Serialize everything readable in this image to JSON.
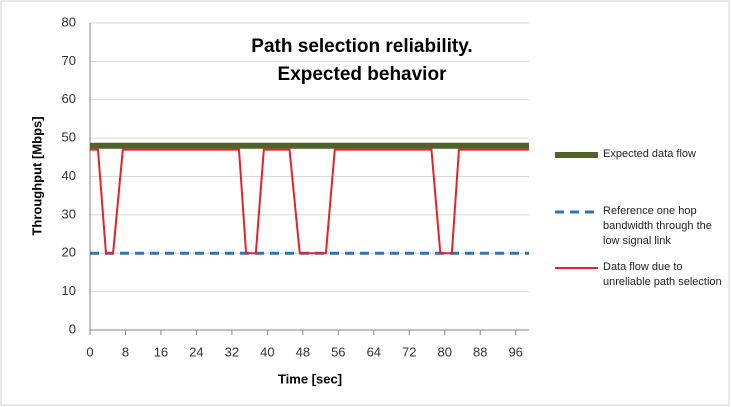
{
  "chart_data": {
    "type": "line",
    "title_lines": [
      "Path selection reliability.",
      "Expected behavior"
    ],
    "x_label": "Time [sec]",
    "y_label": "Throughput [Mbps]",
    "xlim": [
      0,
      99
    ],
    "xticks": [
      0,
      8,
      16,
      24,
      32,
      40,
      48,
      56,
      64,
      72,
      80,
      88,
      96
    ],
    "ylim": [
      0,
      80
    ],
    "yticks": [
      0,
      10,
      20,
      30,
      40,
      50,
      60,
      70,
      80
    ],
    "grid": true,
    "legend": "right",
    "series": [
      {
        "name": "Expected data flow",
        "color": "#4f6228",
        "dash": false,
        "width": 6,
        "x": [
          0,
          99
        ],
        "values": [
          48,
          48
        ]
      },
      {
        "name": "Reference one hop bandwidth through the low signal link",
        "color": "#2e75b6",
        "dash": true,
        "width": 3,
        "x": [
          0,
          99
        ],
        "values": [
          20,
          20
        ]
      },
      {
        "name": "Data flow due to unreliable path selection",
        "color": "#e8202a",
        "dash": false,
        "width": 2,
        "x": [
          0,
          1.8,
          3.6,
          5.2,
          7.4,
          33.6,
          35.2,
          37.4,
          39.2,
          45,
          47.3,
          53.2,
          55.2,
          77,
          79,
          81.6,
          83.2,
          99
        ],
        "values": [
          47,
          47,
          20,
          20,
          47,
          47,
          20,
          20,
          47,
          47,
          20,
          20,
          47,
          47,
          20,
          20,
          47,
          47
        ]
      }
    ]
  }
}
